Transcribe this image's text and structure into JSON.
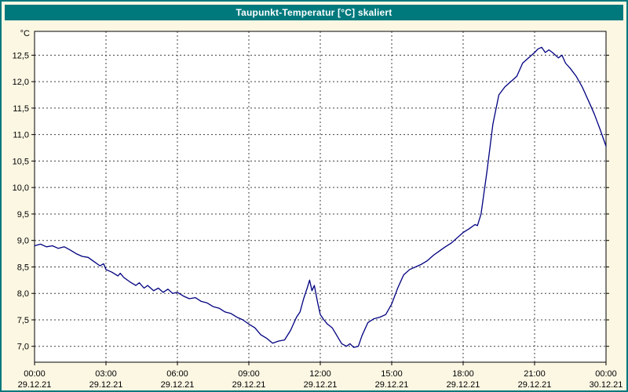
{
  "title": "Taupunkt-Temperatur [°C] skaliert",
  "colors": {
    "frame": "#00797d",
    "titlebar_bg": "#00797d",
    "titlebar_text": "#ffffff",
    "page_bg": "#fcf7e3",
    "plot_bg": "#ffffff",
    "grid": "#404040",
    "plot_border": "#000000",
    "line": "#000080",
    "text": "#000000"
  },
  "chart_data": {
    "type": "line",
    "title": "Taupunkt-Temperatur [°C] skaliert",
    "y_unit_label": "°C",
    "ylim": [
      6.7,
      12.95
    ],
    "grid": true,
    "yticks": [
      {
        "value": 7.0,
        "label": "7,0"
      },
      {
        "value": 7.5,
        "label": "7,5"
      },
      {
        "value": 8.0,
        "label": "8,0"
      },
      {
        "value": 8.5,
        "label": "8,5"
      },
      {
        "value": 9.0,
        "label": "9,0"
      },
      {
        "value": 9.5,
        "label": "9,5"
      },
      {
        "value": 10.0,
        "label": "10,0"
      },
      {
        "value": 10.5,
        "label": "10,5"
      },
      {
        "value": 11.0,
        "label": "11,0"
      },
      {
        "value": 11.5,
        "label": "11,5"
      },
      {
        "value": 12.0,
        "label": "12,0"
      },
      {
        "value": 12.5,
        "label": "12,5"
      }
    ],
    "xlim_hours": [
      0,
      24
    ],
    "xticks": [
      {
        "hour": 0,
        "time": "00:00",
        "date": "29.12.21"
      },
      {
        "hour": 3,
        "time": "03:00",
        "date": "29.12.21"
      },
      {
        "hour": 6,
        "time": "06:00",
        "date": "29.12.21"
      },
      {
        "hour": 9,
        "time": "09:00",
        "date": "29.12.21"
      },
      {
        "hour": 12,
        "time": "12:00",
        "date": "29.12.21"
      },
      {
        "hour": 15,
        "time": "15:00",
        "date": "29.12.21"
      },
      {
        "hour": 18,
        "time": "18:00",
        "date": "29.12.21"
      },
      {
        "hour": 21,
        "time": "21:00",
        "date": "29.12.21"
      },
      {
        "hour": 24,
        "time": "00:00",
        "date": "30.12.21"
      }
    ],
    "series": [
      {
        "name": "Taupunkt-Temperatur",
        "color": "#000080",
        "points": [
          [
            0,
            8.9
          ],
          [
            0.25,
            8.93
          ],
          [
            0.5,
            8.88
          ],
          [
            0.75,
            8.9
          ],
          [
            1,
            8.85
          ],
          [
            1.25,
            8.88
          ],
          [
            1.5,
            8.82
          ],
          [
            1.75,
            8.75
          ],
          [
            2,
            8.7
          ],
          [
            2.25,
            8.68
          ],
          [
            2.5,
            8.6
          ],
          [
            2.75,
            8.52
          ],
          [
            2.9,
            8.56
          ],
          [
            3,
            8.45
          ],
          [
            3.25,
            8.4
          ],
          [
            3.5,
            8.33
          ],
          [
            3.6,
            8.38
          ],
          [
            3.75,
            8.3
          ],
          [
            4,
            8.22
          ],
          [
            4.25,
            8.15
          ],
          [
            4.4,
            8.2
          ],
          [
            4.6,
            8.1
          ],
          [
            4.75,
            8.15
          ],
          [
            5,
            8.05
          ],
          [
            5.2,
            8.1
          ],
          [
            5.4,
            8.02
          ],
          [
            5.6,
            8.08
          ],
          [
            5.8,
            8.0
          ],
          [
            6,
            8.02
          ],
          [
            6.25,
            7.95
          ],
          [
            6.5,
            7.9
          ],
          [
            6.75,
            7.92
          ],
          [
            7,
            7.85
          ],
          [
            7.25,
            7.82
          ],
          [
            7.5,
            7.75
          ],
          [
            7.75,
            7.72
          ],
          [
            8,
            7.65
          ],
          [
            8.25,
            7.62
          ],
          [
            8.5,
            7.55
          ],
          [
            8.75,
            7.5
          ],
          [
            9,
            7.42
          ],
          [
            9.25,
            7.35
          ],
          [
            9.5,
            7.22
          ],
          [
            9.75,
            7.15
          ],
          [
            10,
            7.06
          ],
          [
            10.25,
            7.1
          ],
          [
            10.5,
            7.12
          ],
          [
            10.75,
            7.3
          ],
          [
            11,
            7.55
          ],
          [
            11.15,
            7.65
          ],
          [
            11.3,
            7.9
          ],
          [
            11.45,
            8.1
          ],
          [
            11.55,
            8.25
          ],
          [
            11.65,
            8.05
          ],
          [
            11.75,
            8.15
          ],
          [
            11.9,
            7.8
          ],
          [
            12,
            7.6
          ],
          [
            12.15,
            7.5
          ],
          [
            12.3,
            7.42
          ],
          [
            12.5,
            7.35
          ],
          [
            12.7,
            7.2
          ],
          [
            12.9,
            7.05
          ],
          [
            13.1,
            7.0
          ],
          [
            13.25,
            7.05
          ],
          [
            13.4,
            6.98
          ],
          [
            13.6,
            7.0
          ],
          [
            13.75,
            7.2
          ],
          [
            14,
            7.45
          ],
          [
            14.25,
            7.52
          ],
          [
            14.5,
            7.55
          ],
          [
            14.75,
            7.6
          ],
          [
            15,
            7.8
          ],
          [
            15.25,
            8.1
          ],
          [
            15.5,
            8.35
          ],
          [
            15.75,
            8.45
          ],
          [
            16,
            8.5
          ],
          [
            16.25,
            8.55
          ],
          [
            16.5,
            8.62
          ],
          [
            16.75,
            8.72
          ],
          [
            17,
            8.8
          ],
          [
            17.25,
            8.88
          ],
          [
            17.5,
            8.95
          ],
          [
            17.75,
            9.05
          ],
          [
            18,
            9.15
          ],
          [
            18.25,
            9.22
          ],
          [
            18.5,
            9.3
          ],
          [
            18.6,
            9.28
          ],
          [
            18.75,
            9.5
          ],
          [
            19,
            10.3
          ],
          [
            19.25,
            11.2
          ],
          [
            19.5,
            11.75
          ],
          [
            19.75,
            11.9
          ],
          [
            20,
            12.0
          ],
          [
            20.25,
            12.1
          ],
          [
            20.5,
            12.35
          ],
          [
            20.75,
            12.45
          ],
          [
            21,
            12.55
          ],
          [
            21.15,
            12.62
          ],
          [
            21.3,
            12.65
          ],
          [
            21.45,
            12.55
          ],
          [
            21.6,
            12.6
          ],
          [
            21.75,
            12.55
          ],
          [
            22,
            12.45
          ],
          [
            22.15,
            12.5
          ],
          [
            22.3,
            12.35
          ],
          [
            22.5,
            12.25
          ],
          [
            22.75,
            12.1
          ],
          [
            23,
            11.9
          ],
          [
            23.25,
            11.65
          ],
          [
            23.5,
            11.4
          ],
          [
            23.75,
            11.1
          ],
          [
            24,
            10.78
          ]
        ]
      }
    ]
  }
}
